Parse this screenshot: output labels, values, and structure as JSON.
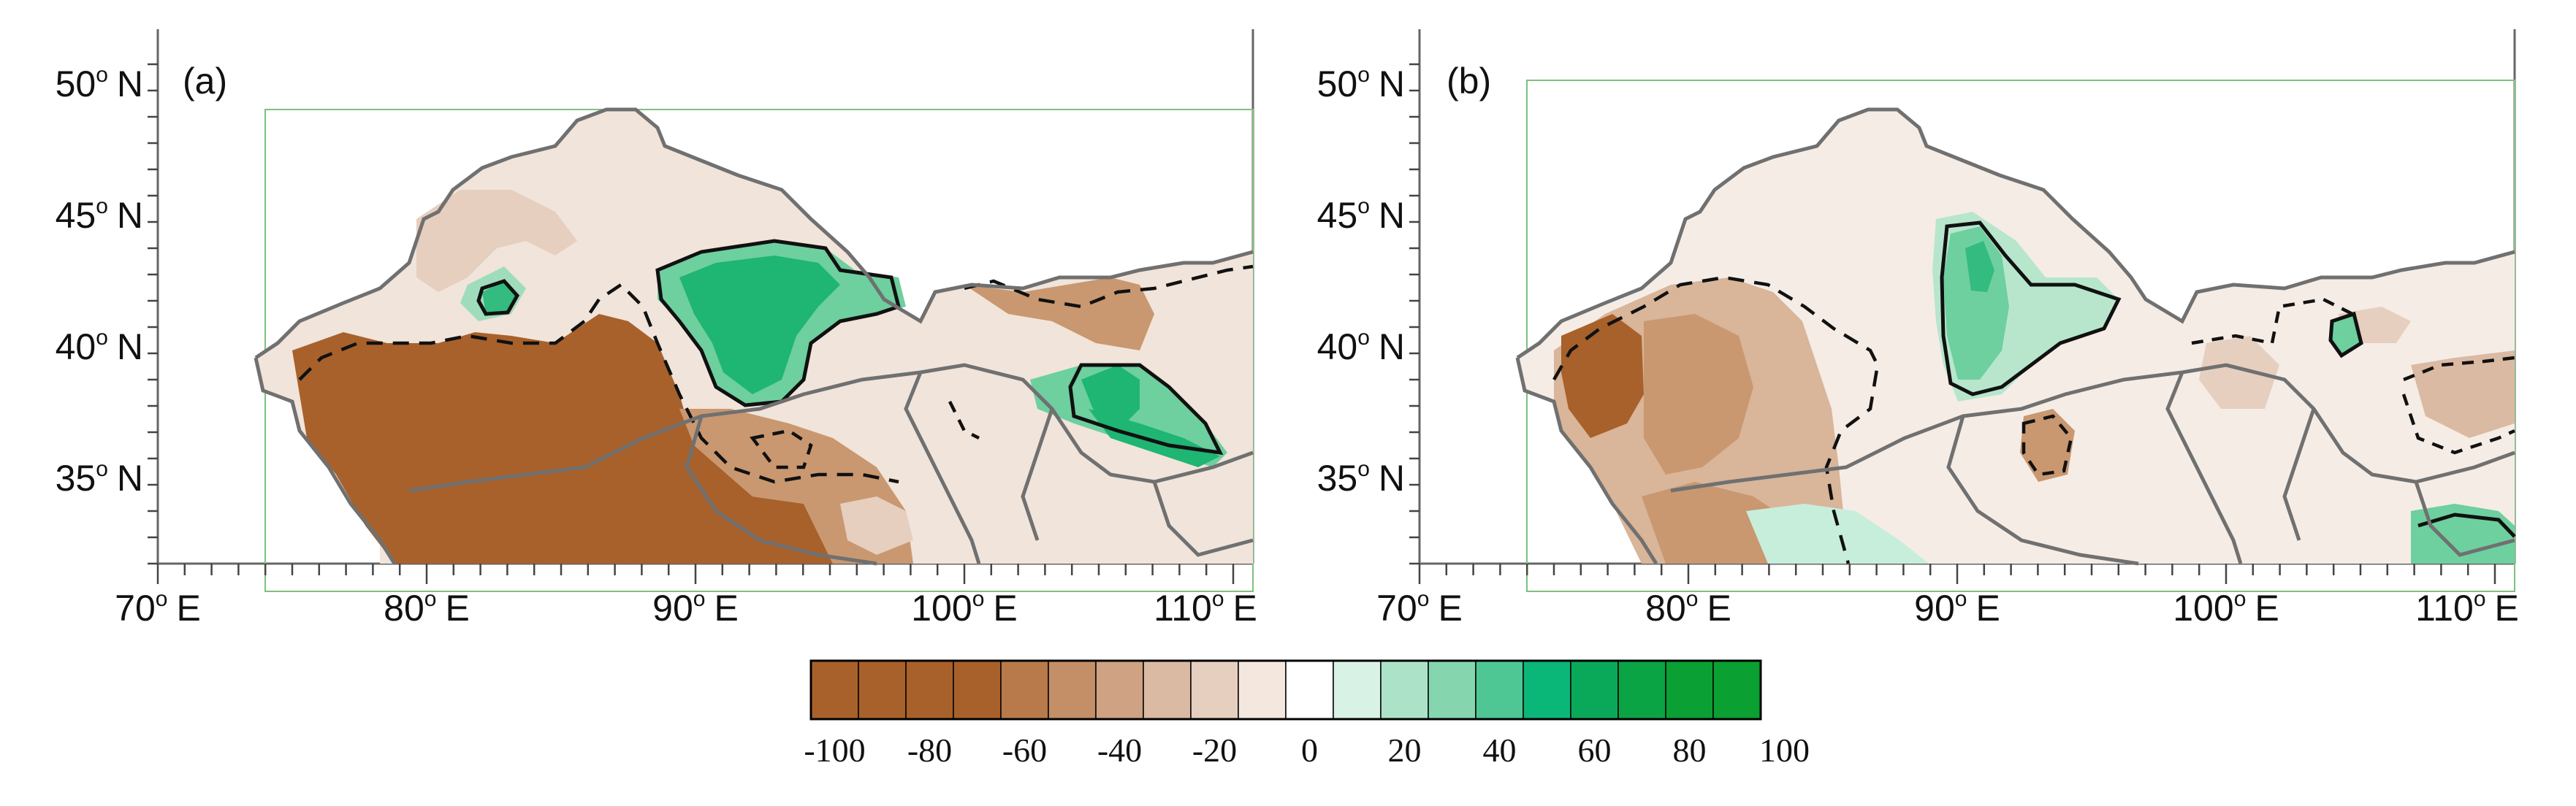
{
  "panels": [
    {
      "label": "(a)",
      "lat_labels": [
        {
          "deg": "50",
          "sup": "o",
          "hem": "N"
        },
        {
          "deg": "45",
          "sup": "o",
          "hem": "N"
        },
        {
          "deg": "40",
          "sup": "o",
          "hem": "N"
        },
        {
          "deg": "35",
          "sup": "o",
          "hem": "N"
        }
      ],
      "lon_labels": [
        {
          "deg": "70",
          "sup": "o",
          "hem": "E"
        },
        {
          "deg": "80",
          "sup": "o",
          "hem": "E"
        },
        {
          "deg": "90",
          "sup": "o",
          "hem": "E"
        },
        {
          "deg": "100",
          "sup": "o",
          "hem": "E"
        },
        {
          "deg": "110",
          "sup": "o",
          "hem": "E"
        }
      ]
    },
    {
      "label": "(b)",
      "lat_labels": [
        {
          "deg": "50",
          "sup": "o",
          "hem": "N"
        },
        {
          "deg": "45",
          "sup": "o",
          "hem": "N"
        },
        {
          "deg": "40",
          "sup": "o",
          "hem": "N"
        },
        {
          "deg": "35",
          "sup": "o",
          "hem": "N"
        }
      ],
      "lon_labels": [
        {
          "deg": "70",
          "sup": "o",
          "hem": "E"
        },
        {
          "deg": "80",
          "sup": "o",
          "hem": "E"
        },
        {
          "deg": "90",
          "sup": "o",
          "hem": "E"
        },
        {
          "deg": "100",
          "sup": "o",
          "hem": "E"
        },
        {
          "deg": "110",
          "sup": "o",
          "hem": "E"
        }
      ]
    }
  ],
  "colorbar": {
    "colors": [
      "#a8612b",
      "#a8612b",
      "#a8612b",
      "#a8612b",
      "#b97a4b",
      "#c48f67",
      "#cea283",
      "#dbbaa3",
      "#e6cfbf",
      "#f4e7de",
      "#ffffff",
      "#d9f2e6",
      "#ace3c8",
      "#85d6ae",
      "#4ec795",
      "#0bb679",
      "#0aa95a",
      "#0aa445",
      "#0aa034",
      "#0aa032"
    ],
    "labels": [
      "-100",
      "-80",
      "-60",
      "-40",
      "-20",
      "0",
      "20",
      "40",
      "60",
      "80",
      "100"
    ]
  },
  "map_colors": {
    "dry_deep": "#a8612b",
    "dry_mid": "#c99870",
    "dry_light": "#e6cfbf",
    "neutral": "#f5ece6",
    "wet_light": "#c7eedb",
    "wet_mid": "#6ecf9f",
    "wet_deep": "#1fb572",
    "boundary": "#707070",
    "domain_box": "#7fc07f"
  }
}
